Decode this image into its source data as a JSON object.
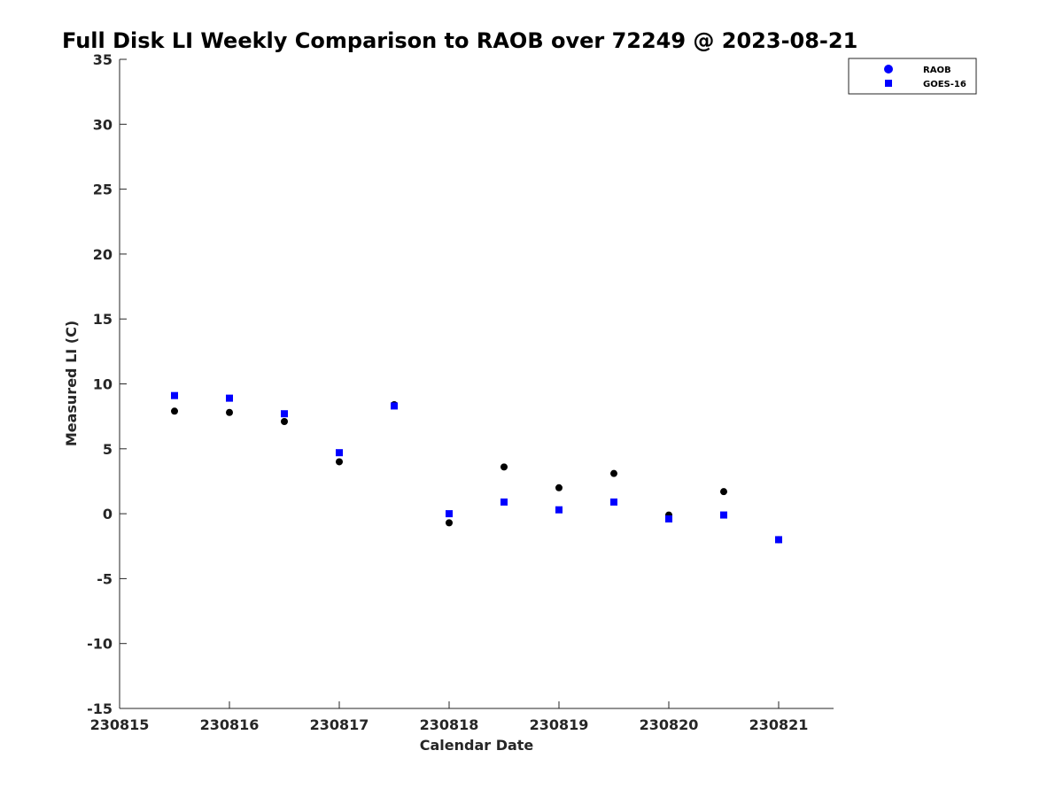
{
  "chart_data": {
    "type": "scatter",
    "title": "Full Disk LI Weekly Comparison to RAOB over 72249 @ 2023-08-21",
    "xlabel": "Calendar Date",
    "ylabel": "Measured LI (C)",
    "xlim": [
      "2023-08-15",
      "2023-08-21 12:00"
    ],
    "ylim": [
      -15,
      35
    ],
    "x_ticks": [
      "230815",
      "230816",
      "230817",
      "230818",
      "230819",
      "230820",
      "230821"
    ],
    "y_ticks": [
      "35",
      "30",
      "25",
      "20",
      "15",
      "10",
      "5",
      "0",
      "-5",
      "-10",
      "-15"
    ],
    "grid": false,
    "legend_position": "top-right",
    "series": [
      {
        "name": "RAOB",
        "color": "#000000",
        "legend_color": "#0000ff",
        "marker": "circle",
        "x": [
          "2023-08-15 12:00",
          "2023-08-16 00:00",
          "2023-08-16 12:00",
          "2023-08-17 00:00",
          "2023-08-17 12:00",
          "2023-08-18 00:00",
          "2023-08-18 12:00",
          "2023-08-19 00:00",
          "2023-08-19 12:00",
          "2023-08-20 00:00",
          "2023-08-20 12:00",
          "2023-08-21 00:00"
        ],
        "y": [
          7.9,
          7.8,
          7.1,
          4.0,
          8.4,
          -0.7,
          3.6,
          2.0,
          3.1,
          -0.1,
          1.7,
          -2.0
        ]
      },
      {
        "name": "GOES-16",
        "color": "#0000ff",
        "marker": "square",
        "x": [
          "2023-08-15 12:00",
          "2023-08-16 00:00",
          "2023-08-16 12:00",
          "2023-08-17 00:00",
          "2023-08-17 12:00",
          "2023-08-18 00:00",
          "2023-08-18 12:00",
          "2023-08-19 00:00",
          "2023-08-19 12:00",
          "2023-08-20 00:00",
          "2023-08-20 12:00",
          "2023-08-21 00:00"
        ],
        "y": [
          9.1,
          8.9,
          7.7,
          4.7,
          8.3,
          0.0,
          0.9,
          0.3,
          0.9,
          -0.4,
          -0.1,
          -2.0
        ]
      }
    ]
  }
}
